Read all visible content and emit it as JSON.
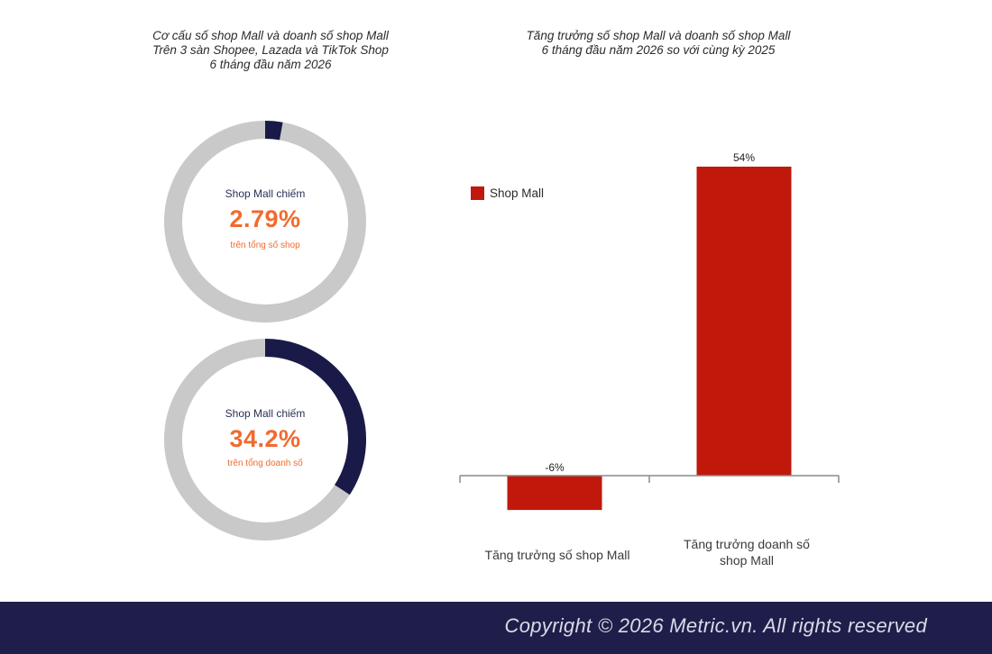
{
  "left_title": {
    "line1": "Cơ cấu số shop Mall và doanh số shop Mall",
    "line2": "Trên 3 sàn Shopee, Lazada và TikTok Shop",
    "line3": "6 tháng đầu năm 2026"
  },
  "right_title": {
    "line1": "Tăng trưởng số shop Mall và doanh số shop Mall",
    "line2": "6 tháng đầu năm 2026 so với cùng kỳ 2025"
  },
  "donut_top": {
    "label": "Shop Mall chiếm",
    "value_text": "2.79%",
    "share": 0.0279,
    "sub": "trên tổng số shop"
  },
  "donut_bottom": {
    "label": "Shop Mall chiếm",
    "value_text": "34.2%",
    "share": 0.342,
    "sub": "trên tổng doanh số"
  },
  "colors": {
    "share": "#1a1a48",
    "rest": "#c9c9c9",
    "bar": "#c0190c",
    "highlight": "#f26a2e"
  },
  "chart_data": {
    "type": "bar",
    "categories": [
      "Tăng trưởng số shop Mall",
      "Tăng trưởng doanh số shop Mall"
    ],
    "series": [
      {
        "name": "Shop Mall",
        "values": [
          -6,
          54
        ]
      }
    ],
    "data_labels": [
      "-6%",
      "54%"
    ],
    "ylim": [
      -6,
      54
    ],
    "grid": false,
    "legend": "top-left"
  },
  "footer": {
    "copyright": "Copyright © 2026 Metric.vn. All rights reserved"
  }
}
